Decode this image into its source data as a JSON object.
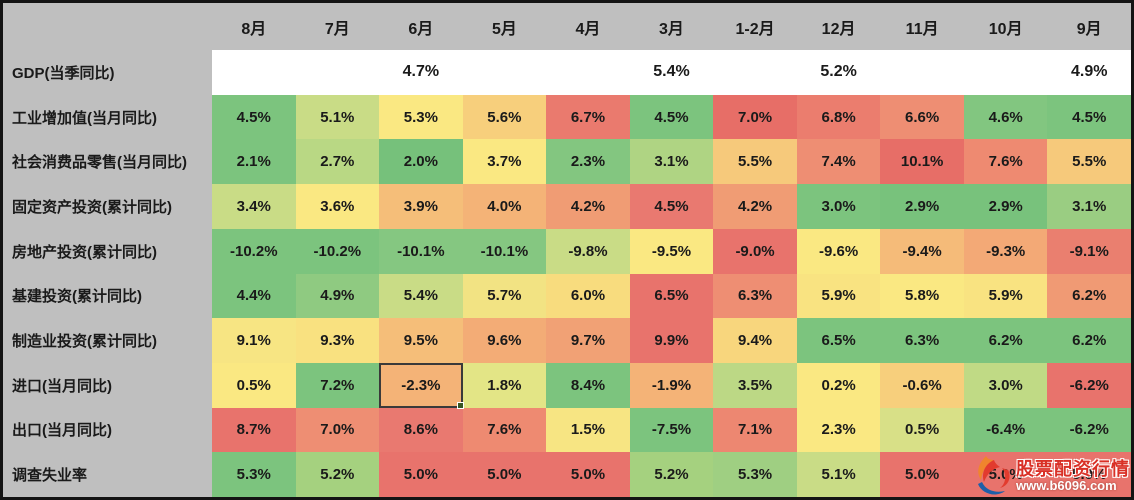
{
  "page": {
    "background": "#BFBFBF",
    "border_color": "#141414",
    "text_color": "#1a1a1a"
  },
  "chart_data": {
    "type": "heatmap",
    "columns": [
      "8月",
      "7月",
      "6月",
      "5月",
      "4月",
      "3月",
      "1-2月",
      "12月",
      "11月",
      "10月",
      "9月"
    ],
    "rows": [
      {
        "label": "GDP(当季同比)",
        "values": [
          "",
          "",
          "4.7%",
          "",
          "",
          "5.4%",
          "",
          "5.2%",
          "",
          "",
          "4.9%"
        ],
        "colors": [
          "#FFFFFF",
          "#FFFFFF",
          "#FFFFFF",
          "#FFFFFF",
          "#FFFFFF",
          "#FFFFFF",
          "#FFFFFF",
          "#FFFFFF",
          "#FFFFFF",
          "#FFFFFF",
          "#FFFFFF"
        ],
        "is_gdp": true
      },
      {
        "label": "工业增加值(当月同比)",
        "values": [
          "4.5%",
          "5.1%",
          "5.3%",
          "5.6%",
          "6.7%",
          "4.5%",
          "7.0%",
          "6.8%",
          "6.6%",
          "4.6%",
          "4.5%"
        ],
        "colors": [
          "#7CC47E",
          "#C9DC86",
          "#FAE882",
          "#F7CF7C",
          "#EA7A6E",
          "#7CC47E",
          "#E76E67",
          "#EB7D6E",
          "#EE8E73",
          "#82C680",
          "#7CC47E"
        ]
      },
      {
        "label": "社会消费品零售(当月同比)",
        "values": [
          "2.1%",
          "2.7%",
          "2.0%",
          "3.7%",
          "2.3%",
          "3.1%",
          "5.5%",
          "7.4%",
          "10.1%",
          "7.6%",
          "5.5%"
        ],
        "colors": [
          "#7CC47E",
          "#B9D884",
          "#76C17B",
          "#FAE882",
          "#83C680",
          "#AFD483",
          "#F6C97B",
          "#EE8E73",
          "#E76E67",
          "#EE8A71",
          "#F6C97B"
        ]
      },
      {
        "label": "固定资产投资(累计同比)",
        "values": [
          "3.4%",
          "3.6%",
          "3.9%",
          "4.0%",
          "4.2%",
          "4.5%",
          "4.2%",
          "3.0%",
          "2.9%",
          "2.9%",
          "3.1%"
        ],
        "colors": [
          "#C9DC86",
          "#FAE882",
          "#F5BE79",
          "#F4B377",
          "#F09C74",
          "#E97970",
          "#F09C74",
          "#7CC47E",
          "#78C27C",
          "#78C27C",
          "#9ACD82"
        ]
      },
      {
        "label": "房地产投资(累计同比)",
        "values": [
          "-10.2%",
          "-10.2%",
          "-10.1%",
          "-10.1%",
          "-9.8%",
          "-9.5%",
          "-9.0%",
          "-9.6%",
          "-9.4%",
          "-9.3%",
          "-9.1%"
        ],
        "colors": [
          "#7CC47E",
          "#7CC47E",
          "#85C781",
          "#85C781",
          "#C9DC86",
          "#FAE882",
          "#E8736C",
          "#FAE882",
          "#F5BB79",
          "#F3A976",
          "#EA7F6F"
        ]
      },
      {
        "label": "基建投资(累计同比)",
        "values": [
          "4.4%",
          "4.9%",
          "5.4%",
          "5.7%",
          "6.0%",
          "6.5%",
          "6.3%",
          "5.9%",
          "5.8%",
          "5.9%",
          "6.2%"
        ],
        "colors": [
          "#7CC47E",
          "#8FCA81",
          "#C9DC86",
          "#F2E383",
          "#F8DC7E",
          "#E8736C",
          "#EE8E73",
          "#F9E381",
          "#FAE882",
          "#F9E381",
          "#F09A74"
        ]
      },
      {
        "label": "制造业投资(累计同比)",
        "values": [
          "9.1%",
          "9.3%",
          "9.5%",
          "9.6%",
          "9.7%",
          "9.9%",
          "9.4%",
          "6.5%",
          "6.3%",
          "6.2%",
          "6.2%"
        ],
        "colors": [
          "#F7E583",
          "#F9E180",
          "#F5BE79",
          "#F3AC76",
          "#F1A175",
          "#E8736C",
          "#F8D67D",
          "#7CC47E",
          "#7CC47E",
          "#7CC47E",
          "#7CC47E"
        ]
      },
      {
        "label": "进口(当月同比)",
        "values": [
          "0.5%",
          "7.2%",
          "-2.3%",
          "1.8%",
          "8.4%",
          "-1.9%",
          "3.5%",
          "0.2%",
          "-0.6%",
          "3.0%",
          "-6.2%"
        ],
        "colors": [
          "#FAE882",
          "#7CC47E",
          "#F4B377",
          "#E3E586",
          "#7CC47E",
          "#F4B377",
          "#BCD885",
          "#FAE882",
          "#F7CF7C",
          "#C0DA85",
          "#E8736C"
        ]
      },
      {
        "label": "出口(当月同比)",
        "values": [
          "8.7%",
          "7.0%",
          "8.6%",
          "7.6%",
          "1.5%",
          "-7.5%",
          "7.1%",
          "2.3%",
          "0.5%",
          "-6.4%",
          "-6.2%"
        ],
        "colors": [
          "#E8736C",
          "#EE8E73",
          "#E97970",
          "#EE8A71",
          "#F7E583",
          "#7CC47E",
          "#ED8771",
          "#FAE882",
          "#D8E087",
          "#7CC47E",
          "#7CC47E"
        ]
      },
      {
        "label": "调查失业率",
        "values": [
          "5.3%",
          "5.2%",
          "5.0%",
          "5.0%",
          "5.0%",
          "5.2%",
          "5.3%",
          "5.1%",
          "5.0%",
          "5.0%",
          "5.0%"
        ],
        "colors": [
          "#7CC47E",
          "#A5D17F",
          "#E8736C",
          "#E8736C",
          "#E8736C",
          "#A5D17F",
          "#9FCF82",
          "#C9DC86",
          "#E8736C",
          "#E8736C",
          "#E8736C"
        ]
      }
    ],
    "selected_cell": {
      "row_index": 7,
      "col_index": 2
    },
    "selection": {
      "border_color": "#3a3a3a",
      "handle_color": "#375623"
    },
    "legend_position": "none",
    "grid": false
  },
  "watermark": {
    "title": "股票配资行情",
    "url": "www.b6096.com",
    "title_color": "#D93026",
    "url_color": "#FFFFFF",
    "logo_colors": {
      "flame": "#F0852D",
      "swirl": "#E23B2E",
      "wave": "#1F5FA8"
    }
  }
}
